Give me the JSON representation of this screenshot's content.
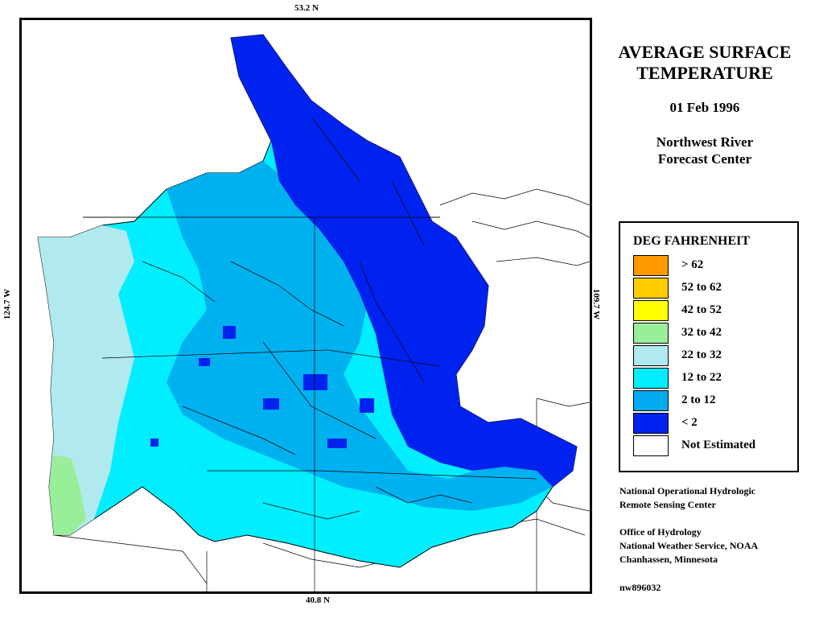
{
  "map": {
    "lat_top": "53.2 N",
    "lat_bottom": "40.8 N",
    "lon_left": "124.7 W",
    "lon_right": "109.7 W",
    "colors": {
      "background": "#ffffff",
      "dominant_zone": "#00eeff",
      "cold_zone": "#0022ee",
      "mid_zone": "#00aaee",
      "coastal_zone": "#b0eaee",
      "warm_zone": "#99ee99",
      "boundaries": "#000000"
    }
  },
  "title": {
    "line1": "AVERAGE SURFACE",
    "line2": "TEMPERATURE",
    "date": "01 Feb 1996",
    "org_line1": "Northwest River",
    "org_line2": "Forecast Center"
  },
  "legend": {
    "title": "DEG FAHRENHEIT",
    "items": [
      {
        "label": "> 62",
        "color": "#ff9900"
      },
      {
        "label": "52 to 62",
        "color": "#ffcc00"
      },
      {
        "label": "42 to 52",
        "color": "#ffff00"
      },
      {
        "label": "32 to 42",
        "color": "#99ee99"
      },
      {
        "label": "22 to 32",
        "color": "#b0eaee"
      },
      {
        "label": "12 to 22",
        "color": "#00eeff"
      },
      {
        "label": "2 to 12",
        "color": "#00aaee"
      },
      {
        "label": "< 2",
        "color": "#0022ee"
      },
      {
        "label": "Not Estimated",
        "color": "#ffffff"
      }
    ]
  },
  "credits": {
    "line1": "National Operational Hydrologic",
    "line2": "Remote Sensing Center",
    "line3": "Office of Hydrology",
    "line4": "National Weather Service, NOAA",
    "line5": "Chanhassen, Minnesota",
    "id": "nw896032"
  }
}
